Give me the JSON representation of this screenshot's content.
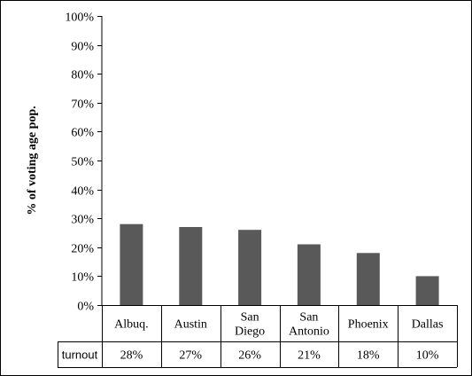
{
  "chart_data": {
    "type": "bar",
    "title": "",
    "xlabel": "",
    "ylabel": "% of voting age pop.",
    "categories": [
      "Albuq.",
      "Austin",
      "San Diego",
      "San Antonio",
      "Phoenix",
      "Dallas"
    ],
    "category_lines": [
      [
        "Albuq."
      ],
      [
        "Austin"
      ],
      [
        "San",
        "Diego"
      ],
      [
        "San",
        "Antonio"
      ],
      [
        "Phoenix"
      ],
      [
        "Dallas"
      ]
    ],
    "series": [
      {
        "values": [
          28,
          27,
          26,
          21,
          18,
          10
        ],
        "color": "#595959"
      }
    ],
    "ylim": [
      0,
      100
    ],
    "y_ticks": [
      0,
      10,
      20,
      30,
      40,
      50,
      60,
      70,
      80,
      90,
      100
    ],
    "y_tick_format": "percent",
    "grid": false,
    "legend": "none",
    "table": {
      "row_header": "turnout",
      "cells": [
        "28%",
        "27%",
        "26%",
        "21%",
        "18%",
        "10%"
      ]
    }
  }
}
